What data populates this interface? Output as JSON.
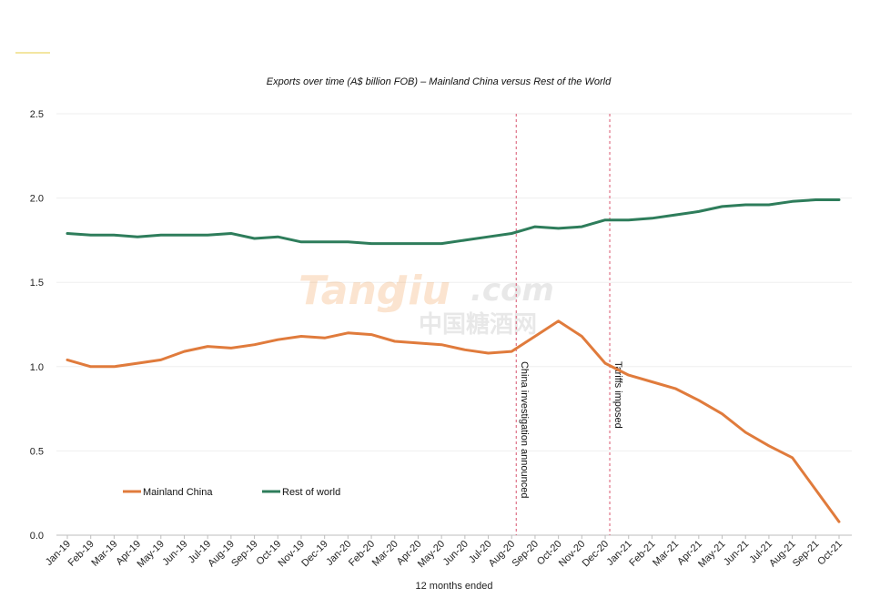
{
  "chart_data": {
    "type": "line",
    "title": "Exports over time (A$ billion FOB) – Mainland China versus Rest of the World",
    "xlabel": "12 months ended",
    "ylabel": "",
    "ylim": [
      0,
      2.5
    ],
    "yticks": [
      "0.0",
      "0.5",
      "1.0",
      "1.5",
      "2.0",
      "2.5"
    ],
    "grid": "horizontal",
    "legend": "bottom-left",
    "x": [
      "Jan-19",
      "Feb-19",
      "Mar-19",
      "Apr-19",
      "May-19",
      "Jun-19",
      "Jul-19",
      "Aug-19",
      "Sep-19",
      "Oct-19",
      "Nov-19",
      "Dec-19",
      "Jan-20",
      "Feb-20",
      "Mar-20",
      "Apr-20",
      "May-20",
      "Jun-20",
      "Jul-20",
      "Aug-20",
      "Sep-20",
      "Oct-20",
      "Nov-20",
      "Dec-20",
      "Jan-21",
      "Feb-21",
      "Mar-21",
      "Apr-21",
      "May-21",
      "Jun-21",
      "Jul-21",
      "Aug-21",
      "Sep-21",
      "Oct-21"
    ],
    "series": [
      {
        "name": "Mainland China",
        "color": "#e07b3c",
        "values": [
          1.04,
          1.0,
          1.0,
          1.02,
          1.04,
          1.09,
          1.12,
          1.11,
          1.13,
          1.16,
          1.18,
          1.17,
          1.2,
          1.19,
          1.15,
          1.14,
          1.13,
          1.1,
          1.08,
          1.09,
          1.18,
          1.27,
          1.18,
          1.02,
          0.95,
          0.91,
          0.87,
          0.8,
          0.72,
          0.61,
          0.53,
          0.46,
          0.27,
          0.08
        ]
      },
      {
        "name": "Rest of world",
        "color": "#2e7d5b",
        "values": [
          1.79,
          1.78,
          1.78,
          1.77,
          1.78,
          1.78,
          1.78,
          1.79,
          1.76,
          1.77,
          1.74,
          1.74,
          1.74,
          1.73,
          1.73,
          1.73,
          1.73,
          1.75,
          1.77,
          1.79,
          1.83,
          1.82,
          1.83,
          1.87,
          1.87,
          1.88,
          1.9,
          1.92,
          1.95,
          1.96,
          1.96,
          1.98,
          1.99,
          1.99
        ]
      }
    ],
    "annotations": [
      {
        "x": "Aug-20",
        "text": "China investigation announced"
      },
      {
        "x": "Dec-20",
        "text": "Tariffs imposed"
      }
    ]
  },
  "watermark": {
    "brand_a": "Tang",
    "brand_b": "Jiu",
    "domain": ".com",
    "chinese": "中国糖酒网"
  }
}
